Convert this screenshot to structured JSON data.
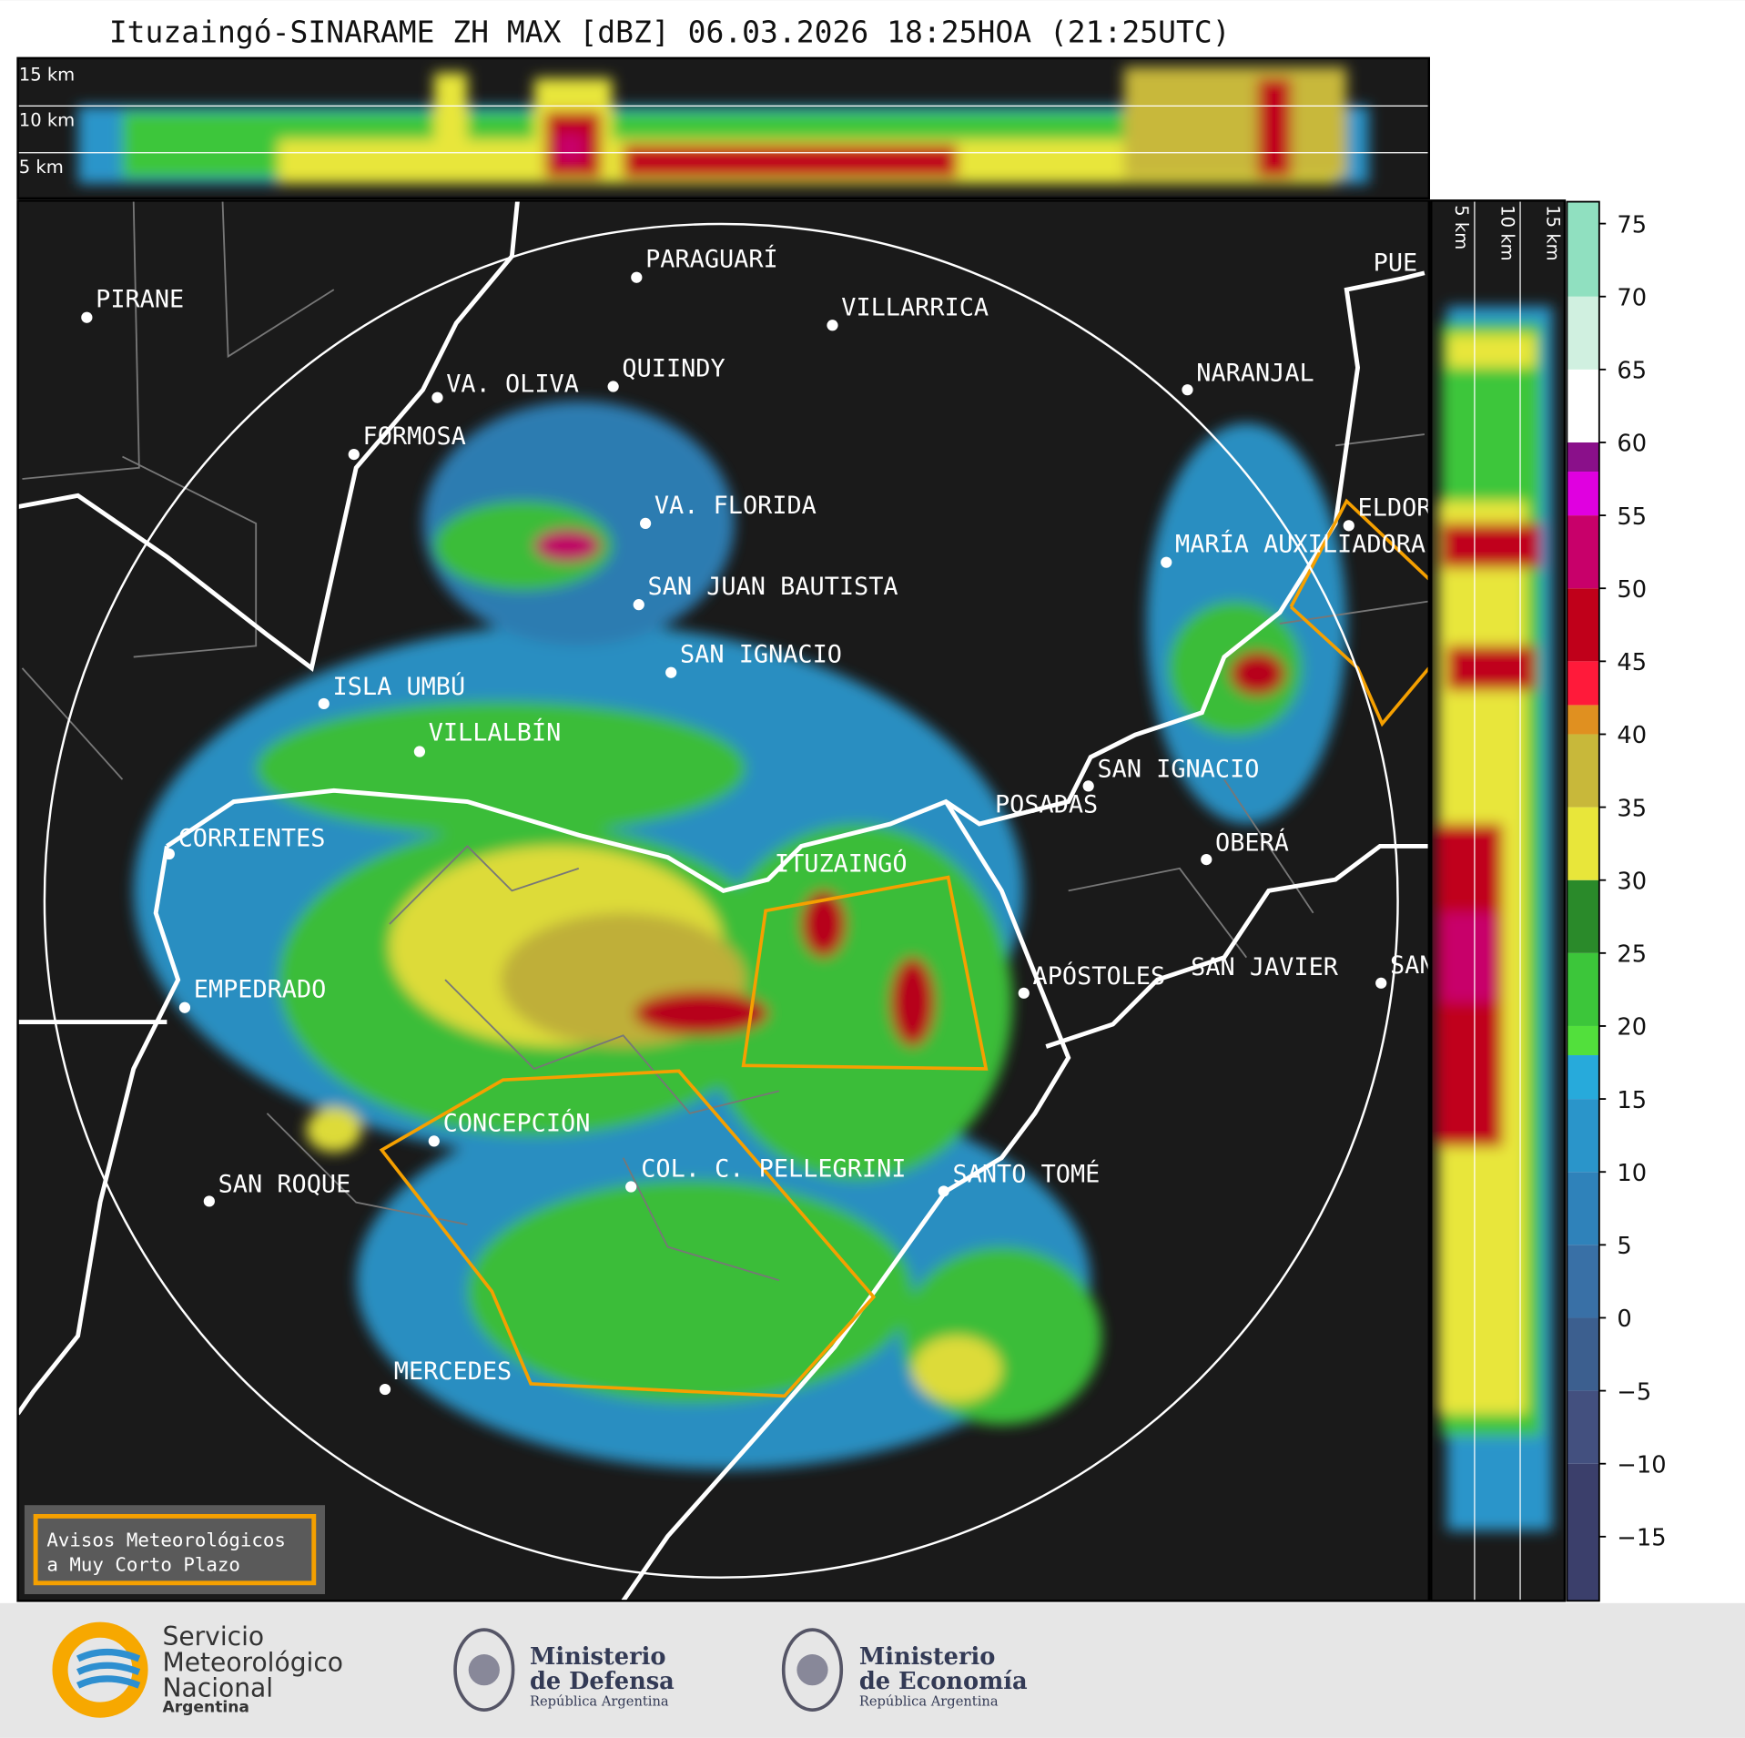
{
  "title": "Ituzaingó-SINARAME ZH MAX [dBZ] 06.03.2026 18:25HOA (21:25UTC)",
  "top_panel": {
    "labels": [
      "15 km",
      "10 km",
      "5 km"
    ]
  },
  "side_panel": {
    "labels": [
      "5 km",
      "10 km",
      "15 km"
    ]
  },
  "places": [
    "PIRANE",
    "PARAGUARÍ",
    "VILLARRICA",
    "QUIINDY",
    "VA. OLIVA",
    "FORMOSA",
    "NARANJAL",
    "VA. FLORIDA",
    "ELDORADO",
    "MARÍA AUXILIADORA",
    "SAN JUAN BAUTISTA",
    "SAN IGNACIO",
    "ISLA UMBÚ",
    "VILLALBÍN",
    "SAN IGNACIO",
    "POSADAS",
    "CORRIENTES",
    "ITUZAINGÓ",
    "OBERÁ",
    "APÓSTOLES",
    "SAN JAVIER",
    "SAN",
    "EMPEDRADO",
    "CONCEPCIÓN",
    "COL. C. PELLEGRINI",
    "SANTO TOMÉ",
    "SAN ROQUE",
    "MERCEDES",
    "PUE"
  ],
  "legend": [
    "Avisos Meteorológicos",
    "a Muy Corto Plazo"
  ],
  "colorbar": {
    "lim": [
      -19.4,
      76.5
    ],
    "ticks": [
      75,
      70,
      65,
      60,
      55,
      50,
      45,
      40,
      35,
      30,
      25,
      20,
      15,
      10,
      5,
      0,
      {
        "value": -5,
        "label": "−5"
      },
      {
        "value": -10,
        "label": "−10"
      },
      {
        "value": -15,
        "label": "−15"
      }
    ],
    "bands": [
      {
        "from": -19.4,
        "to": -10,
        "color": "#3b3f6b"
      },
      {
        "from": -10,
        "to": -5,
        "color": "#43507f"
      },
      {
        "from": -5,
        "to": 0,
        "color": "#3c5f8f"
      },
      {
        "from": 0,
        "to": 5,
        "color": "#3970a6"
      },
      {
        "from": 5,
        "to": 10,
        "color": "#2f82ba"
      },
      {
        "from": 10,
        "to": 15,
        "color": "#2a95ca"
      },
      {
        "from": 15,
        "to": 18,
        "color": "#27aadb"
      },
      {
        "from": 18,
        "to": 20,
        "color": "#52e03c"
      },
      {
        "from": 20,
        "to": 25,
        "color": "#3cc63a"
      },
      {
        "from": 25,
        "to": 30,
        "color": "#2a8a2a"
      },
      {
        "from": 30,
        "to": 35,
        "color": "#e8e63a"
      },
      {
        "from": 35,
        "to": 40,
        "color": "#c8b83a"
      },
      {
        "from": 40,
        "to": 42,
        "color": "#e09020"
      },
      {
        "from": 42,
        "to": 45,
        "color": "#ff1a3a"
      },
      {
        "from": 45,
        "to": 50,
        "color": "#c0001a"
      },
      {
        "from": 50,
        "to": 55,
        "color": "#c8006a"
      },
      {
        "from": 55,
        "to": 58,
        "color": "#e000e0"
      },
      {
        "from": 58,
        "to": 60,
        "color": "#8a108a"
      },
      {
        "from": 60,
        "to": 65,
        "color": "#ffffff"
      },
      {
        "from": 65,
        "to": 70,
        "color": "#d0f0e0"
      },
      {
        "from": 70,
        "to": 76.5,
        "color": "#90e0c0"
      }
    ]
  },
  "logos": {
    "smn": [
      "Servicio",
      "Meteorológico",
      "Nacional",
      "Argentina"
    ],
    "defensa": [
      "Ministerio",
      "de Defensa",
      "República Argentina"
    ],
    "economia": [
      "Ministerio",
      "de Economía",
      "República Argentina"
    ]
  }
}
